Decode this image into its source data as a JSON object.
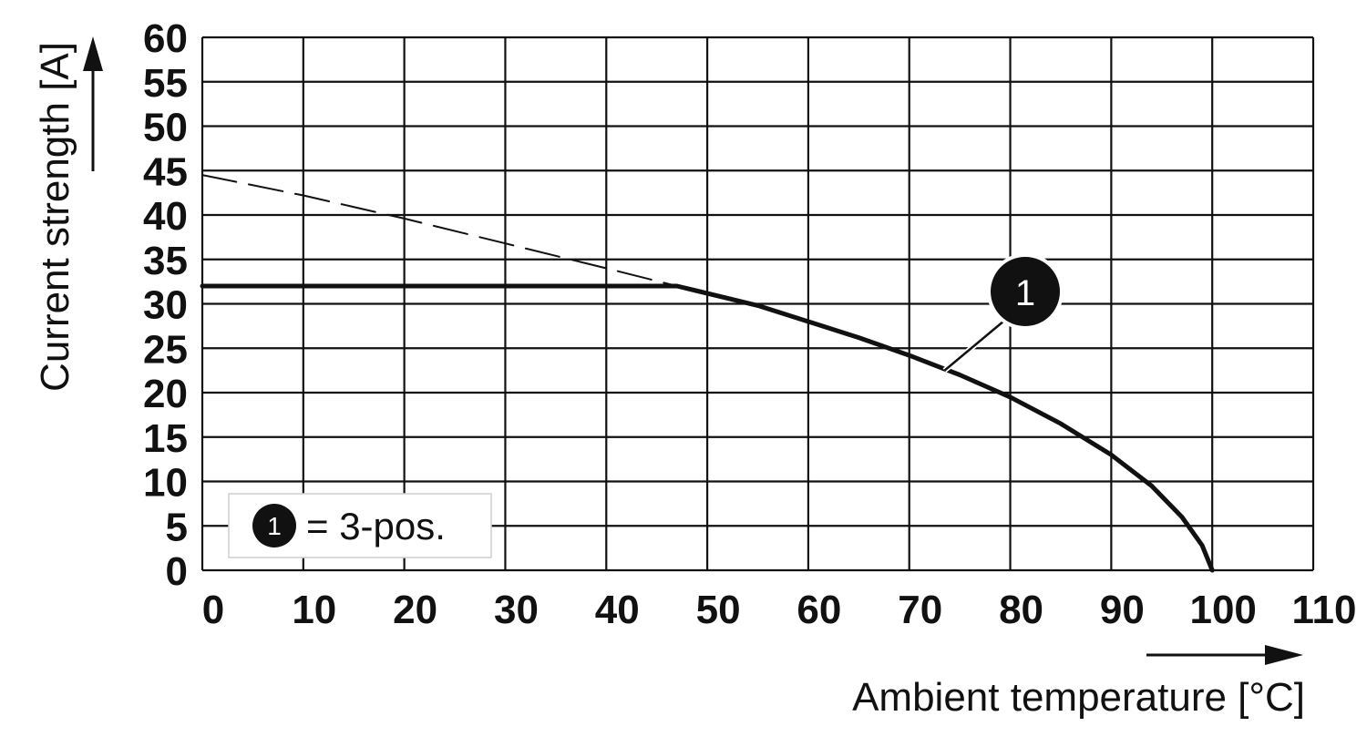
{
  "chart_data": {
    "type": "line",
    "xlabel": "Ambient temperature [°C]",
    "ylabel": "Current strength [A]",
    "xlim": [
      0,
      110
    ],
    "ylim": [
      0,
      60
    ],
    "x_ticks": [
      0,
      10,
      20,
      30,
      40,
      50,
      60,
      70,
      80,
      90,
      100,
      110
    ],
    "y_ticks": [
      0,
      5,
      10,
      15,
      20,
      25,
      30,
      35,
      40,
      45,
      50,
      55,
      60
    ],
    "grid": true,
    "series": [
      {
        "name": "1",
        "style": "solid",
        "points": [
          [
            0,
            32
          ],
          [
            47,
            32
          ],
          [
            55,
            29.8
          ],
          [
            60,
            28
          ],
          [
            65,
            26.2
          ],
          [
            70,
            24.2
          ],
          [
            75,
            22
          ],
          [
            80,
            19.5
          ],
          [
            85,
            16.5
          ],
          [
            90,
            13
          ],
          [
            94,
            9.5
          ],
          [
            97,
            6
          ],
          [
            99,
            2.8
          ],
          [
            100,
            0
          ]
        ]
      },
      {
        "style": "dashed",
        "points": [
          [
            0,
            44.5
          ],
          [
            10,
            42.2
          ],
          [
            20,
            39.6
          ],
          [
            30,
            36.8
          ],
          [
            40,
            34
          ],
          [
            47,
            32
          ]
        ]
      }
    ],
    "callout": {
      "label": "1",
      "anchor": [
        73.5,
        22.5
      ]
    },
    "legend": {
      "badge": "1",
      "text": "= 3-pos.",
      "position": "bottom-left"
    }
  }
}
